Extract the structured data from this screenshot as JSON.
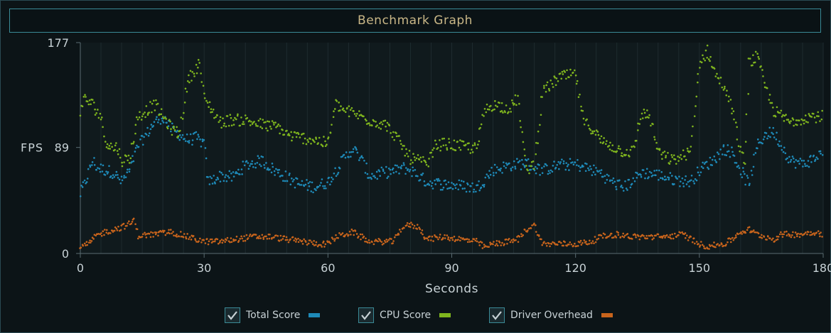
{
  "title": "Benchmark Graph",
  "chart_data": {
    "type": "scatter",
    "title": "Benchmark Graph",
    "xlabel": "Seconds",
    "ylabel": "FPS",
    "xlim": [
      0,
      180
    ],
    "ylim": [
      0,
      177
    ],
    "x_ticks": [
      "0",
      "30",
      "60",
      "90",
      "120",
      "150",
      "180"
    ],
    "y_ticks": [
      "0",
      "89",
      "177"
    ],
    "grid": "vertical",
    "legend_position": "bottom",
    "series": [
      {
        "name": "Total Score",
        "color": "#1e8ab8",
        "points": [
          [
            0,
            50
          ],
          [
            1,
            58
          ],
          [
            2,
            68
          ],
          [
            3,
            78
          ],
          [
            4,
            72
          ],
          [
            6,
            70
          ],
          [
            8,
            68
          ],
          [
            10,
            60
          ],
          [
            12,
            70
          ],
          [
            14,
            90
          ],
          [
            16,
            100
          ],
          [
            18,
            110
          ],
          [
            20,
            115
          ],
          [
            22,
            105
          ],
          [
            24,
            100
          ],
          [
            26,
            95
          ],
          [
            28,
            97
          ],
          [
            30,
            92
          ],
          [
            31,
            60
          ],
          [
            34,
            65
          ],
          [
            37,
            64
          ],
          [
            40,
            74
          ],
          [
            44,
            78
          ],
          [
            47,
            70
          ],
          [
            50,
            64
          ],
          [
            53,
            58
          ],
          [
            57,
            56
          ],
          [
            60,
            60
          ],
          [
            62,
            70
          ],
          [
            64,
            80
          ],
          [
            66,
            88
          ],
          [
            68,
            80
          ],
          [
            70,
            65
          ],
          [
            74,
            68
          ],
          [
            77,
            70
          ],
          [
            78,
            72
          ],
          [
            80,
            70
          ],
          [
            82,
            65
          ],
          [
            84,
            60
          ],
          [
            88,
            58
          ],
          [
            92,
            57
          ],
          [
            96,
            55
          ],
          [
            98,
            62
          ],
          [
            100,
            70
          ],
          [
            104,
            74
          ],
          [
            108,
            76
          ],
          [
            110,
            72
          ],
          [
            112,
            70
          ],
          [
            116,
            74
          ],
          [
            120,
            75
          ],
          [
            124,
            70
          ],
          [
            126,
            68
          ],
          [
            128,
            62
          ],
          [
            130,
            58
          ],
          [
            132,
            56
          ],
          [
            136,
            68
          ],
          [
            140,
            66
          ],
          [
            144,
            62
          ],
          [
            148,
            60
          ],
          [
            150,
            70
          ],
          [
            152,
            75
          ],
          [
            154,
            80
          ],
          [
            156,
            88
          ],
          [
            158,
            85
          ],
          [
            160,
            70
          ],
          [
            162,
            58
          ],
          [
            164,
            90
          ],
          [
            166,
            100
          ],
          [
            168,
            102
          ],
          [
            170,
            90
          ],
          [
            172,
            78
          ],
          [
            175,
            75
          ],
          [
            178,
            80
          ],
          [
            180,
            85
          ]
        ]
      },
      {
        "name": "CPU Score",
        "color": "#7fb51e",
        "points": [
          [
            0,
            120
          ],
          [
            1,
            130
          ],
          [
            3,
            125
          ],
          [
            5,
            115
          ],
          [
            6,
            95
          ],
          [
            8,
            88
          ],
          [
            9,
            90
          ],
          [
            10,
            78
          ],
          [
            12,
            80
          ],
          [
            14,
            115
          ],
          [
            16,
            120
          ],
          [
            18,
            125
          ],
          [
            20,
            115
          ],
          [
            22,
            105
          ],
          [
            24,
            100
          ],
          [
            26,
            145
          ],
          [
            28,
            155
          ],
          [
            29,
            160
          ],
          [
            30,
            130
          ],
          [
            32,
            120
          ],
          [
            34,
            110
          ],
          [
            36,
            112
          ],
          [
            40,
            112
          ],
          [
            44,
            108
          ],
          [
            48,
            106
          ],
          [
            50,
            100
          ],
          [
            52,
            98
          ],
          [
            56,
            96
          ],
          [
            60,
            92
          ],
          [
            62,
            125
          ],
          [
            64,
            120
          ],
          [
            66,
            118
          ],
          [
            70,
            112
          ],
          [
            74,
            108
          ],
          [
            76,
            100
          ],
          [
            78,
            90
          ],
          [
            80,
            80
          ],
          [
            82,
            78
          ],
          [
            84,
            74
          ],
          [
            86,
            90
          ],
          [
            88,
            92
          ],
          [
            92,
            90
          ],
          [
            96,
            88
          ],
          [
            98,
            120
          ],
          [
            100,
            125
          ],
          [
            104,
            122
          ],
          [
            106,
            130
          ],
          [
            108,
            70
          ],
          [
            110,
            75
          ],
          [
            112,
            135
          ],
          [
            116,
            148
          ],
          [
            120,
            150
          ],
          [
            122,
            110
          ],
          [
            124,
            105
          ],
          [
            126,
            95
          ],
          [
            130,
            88
          ],
          [
            132,
            85
          ],
          [
            134,
            86
          ],
          [
            136,
            118
          ],
          [
            138,
            115
          ],
          [
            140,
            85
          ],
          [
            142,
            80
          ],
          [
            144,
            78
          ],
          [
            148,
            86
          ],
          [
            150,
            160
          ],
          [
            152,
            170
          ],
          [
            154,
            150
          ],
          [
            156,
            140
          ],
          [
            158,
            120
          ],
          [
            160,
            85
          ],
          [
            161,
            75
          ],
          [
            162,
            160
          ],
          [
            164,
            165
          ],
          [
            166,
            140
          ],
          [
            168,
            120
          ],
          [
            170,
            115
          ],
          [
            172,
            110
          ],
          [
            176,
            115
          ],
          [
            180,
            115
          ]
        ]
      },
      {
        "name": "Driver Overhead",
        "color": "#c8641c",
        "points": [
          [
            0,
            5
          ],
          [
            2,
            8
          ],
          [
            4,
            15
          ],
          [
            6,
            18
          ],
          [
            8,
            20
          ],
          [
            10,
            22
          ],
          [
            12,
            25
          ],
          [
            13,
            28
          ],
          [
            14,
            15
          ],
          [
            18,
            16
          ],
          [
            22,
            18
          ],
          [
            26,
            14
          ],
          [
            30,
            10
          ],
          [
            34,
            10
          ],
          [
            38,
            12
          ],
          [
            42,
            14
          ],
          [
            46,
            14
          ],
          [
            50,
            12
          ],
          [
            54,
            10
          ],
          [
            58,
            8
          ],
          [
            60,
            8
          ],
          [
            62,
            14
          ],
          [
            66,
            18
          ],
          [
            70,
            10
          ],
          [
            76,
            10
          ],
          [
            78,
            22
          ],
          [
            80,
            24
          ],
          [
            82,
            22
          ],
          [
            84,
            12
          ],
          [
            88,
            14
          ],
          [
            92,
            12
          ],
          [
            96,
            10
          ],
          [
            98,
            5
          ],
          [
            100,
            8
          ],
          [
            104,
            10
          ],
          [
            106,
            12
          ],
          [
            108,
            20
          ],
          [
            110,
            24
          ],
          [
            112,
            8
          ],
          [
            116,
            8
          ],
          [
            120,
            8
          ],
          [
            124,
            10
          ],
          [
            126,
            14
          ],
          [
            130,
            16
          ],
          [
            134,
            14
          ],
          [
            138,
            14
          ],
          [
            142,
            14
          ],
          [
            146,
            16
          ],
          [
            148,
            12
          ],
          [
            150,
            8
          ],
          [
            152,
            6
          ],
          [
            156,
            8
          ],
          [
            158,
            12
          ],
          [
            160,
            18
          ],
          [
            162,
            20
          ],
          [
            164,
            16
          ],
          [
            166,
            14
          ],
          [
            168,
            12
          ],
          [
            170,
            16
          ],
          [
            174,
            16
          ],
          [
            178,
            18
          ],
          [
            180,
            16
          ]
        ]
      }
    ]
  },
  "legend": {
    "items": [
      {
        "label": "Total Score",
        "color": "#1e8ab8"
      },
      {
        "label": "CPU Score",
        "color": "#7fb51e"
      },
      {
        "label": "Driver Overhead",
        "color": "#c8641c"
      }
    ]
  }
}
